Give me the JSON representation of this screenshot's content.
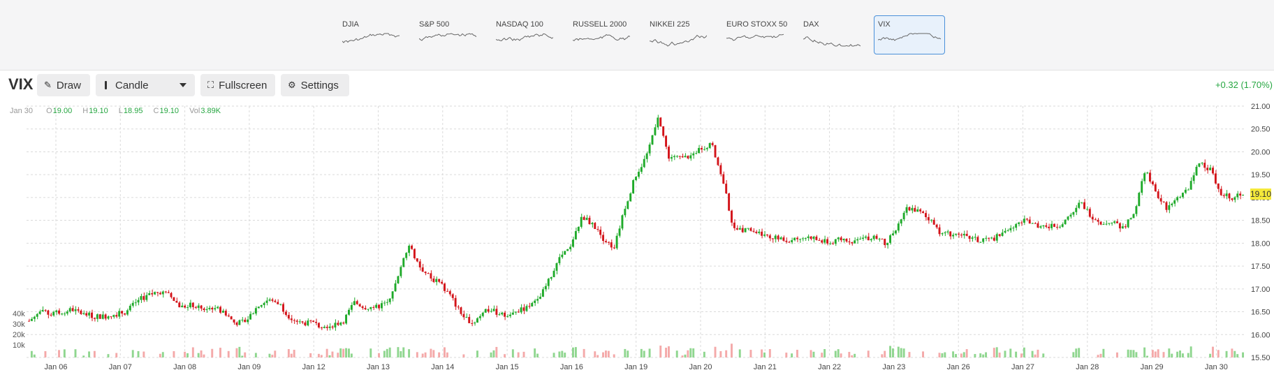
{
  "indices": [
    {
      "label": "DJIA",
      "active": false
    },
    {
      "label": "S&P 500",
      "active": false
    },
    {
      "label": "NASDAQ 100",
      "active": false
    },
    {
      "label": "RUSSELL 2000",
      "active": false
    },
    {
      "label": "NIKKEI 225",
      "active": false
    },
    {
      "label": "EURO STOXX 50",
      "active": false
    },
    {
      "label": "DAX",
      "active": false
    },
    {
      "label": "VIX",
      "active": true
    }
  ],
  "toolbar": {
    "symbol": "VIX",
    "draw_label": "Draw",
    "chart_type_label": "Candle",
    "fullscreen_label": "Fullscreen",
    "settings_label": "Settings",
    "change": "+0.32 (1.70%)"
  },
  "ohlc": {
    "date": "Jan 30",
    "open_key": "O",
    "open": "19.00",
    "high_key": "H",
    "high": "19.10",
    "low_key": "L",
    "low": "18.95",
    "close_key": "C",
    "close": "19.10",
    "vol_key": "Vol",
    "vol": "3.89K"
  },
  "last_price": "19.10",
  "colors": {
    "up": "#1faa2a",
    "down": "#d3141a",
    "vol_up": "#8fd68f",
    "vol_down": "#f4a9a9",
    "accent": "#4a90d9"
  },
  "chart_data": {
    "type": "candlestick",
    "ylim": [
      15.5,
      21.0
    ],
    "y_ticks": [
      "21.00",
      "20.50",
      "20.00",
      "19.50",
      "19.00",
      "18.50",
      "18.00",
      "17.50",
      "17.00",
      "16.50",
      "16.00",
      "15.50"
    ],
    "volume_ticks": [
      "40k",
      "30k",
      "20k",
      "10k"
    ],
    "x_ticks": [
      "Jan 06",
      "Jan 07",
      "Jan 08",
      "Jan 09",
      "Jan 12",
      "Jan 13",
      "Jan 14",
      "Jan 15",
      "Jan 16",
      "Jan 19",
      "Jan 20",
      "Jan 21",
      "Jan 22",
      "Jan 23",
      "Jan 26",
      "Jan 27",
      "Jan 28",
      "Jan 29",
      "Jan 30"
    ],
    "close_path": [
      [
        0,
        16.3
      ],
      [
        1,
        16.5
      ],
      [
        2,
        16.45
      ],
      [
        3,
        16.5
      ],
      [
        4,
        16.55
      ],
      [
        5,
        16.45
      ],
      [
        6,
        16.4
      ],
      [
        7,
        16.4
      ],
      [
        8,
        16.45
      ],
      [
        9,
        16.5
      ],
      [
        10,
        16.75
      ],
      [
        11,
        16.85
      ],
      [
        12,
        16.95
      ],
      [
        13,
        16.85
      ],
      [
        14,
        16.6
      ],
      [
        15,
        16.65
      ],
      [
        16,
        16.55
      ],
      [
        17,
        16.6
      ],
      [
        18,
        16.5
      ],
      [
        19,
        16.25
      ],
      [
        20,
        16.3
      ],
      [
        21,
        16.6
      ],
      [
        22,
        16.75
      ],
      [
        23,
        16.7
      ],
      [
        24,
        16.4
      ],
      [
        25,
        16.25
      ],
      [
        26,
        16.25
      ],
      [
        27,
        16.2
      ],
      [
        28,
        16.2
      ],
      [
        29,
        16.3
      ],
      [
        30,
        16.7
      ],
      [
        31,
        16.6
      ],
      [
        32,
        16.6
      ],
      [
        33,
        16.7
      ],
      [
        34,
        17.2
      ],
      [
        35,
        18.0
      ],
      [
        36,
        17.5
      ],
      [
        37,
        17.25
      ],
      [
        38,
        17.1
      ],
      [
        39,
        16.8
      ],
      [
        40,
        16.4
      ],
      [
        41,
        16.25
      ],
      [
        42,
        16.55
      ],
      [
        43,
        16.5
      ],
      [
        44,
        16.4
      ],
      [
        45,
        16.5
      ],
      [
        46,
        16.6
      ],
      [
        47,
        16.75
      ],
      [
        48,
        17.2
      ],
      [
        49,
        17.7
      ],
      [
        50,
        17.9
      ],
      [
        51,
        18.6
      ],
      [
        52,
        18.4
      ],
      [
        53,
        18.1
      ],
      [
        54,
        17.9
      ],
      [
        55,
        18.8
      ],
      [
        56,
        19.5
      ],
      [
        57,
        19.9
      ],
      [
        58,
        20.8
      ],
      [
        59,
        19.9
      ],
      [
        60,
        19.85
      ],
      [
        61,
        19.9
      ],
      [
        62,
        20.1
      ],
      [
        63,
        20.15
      ],
      [
        64,
        19.4
      ],
      [
        65,
        18.3
      ],
      [
        66,
        18.3
      ],
      [
        67,
        18.25
      ],
      [
        68,
        18.2
      ],
      [
        69,
        18.1
      ],
      [
        70,
        18.05
      ],
      [
        71,
        18.1
      ],
      [
        72,
        18.15
      ],
      [
        73,
        18.05
      ],
      [
        74,
        18.0
      ],
      [
        75,
        18.1
      ],
      [
        76,
        18.05
      ],
      [
        77,
        18.1
      ],
      [
        78,
        18.15
      ],
      [
        79,
        18.0
      ],
      [
        80,
        18.3
      ],
      [
        81,
        18.8
      ],
      [
        82,
        18.7
      ],
      [
        83,
        18.55
      ],
      [
        84,
        18.25
      ],
      [
        85,
        18.2
      ],
      [
        86,
        18.2
      ],
      [
        87,
        18.1
      ],
      [
        88,
        18.05
      ],
      [
        89,
        18.1
      ],
      [
        90,
        18.3
      ],
      [
        91,
        18.4
      ],
      [
        92,
        18.5
      ],
      [
        93,
        18.4
      ],
      [
        94,
        18.35
      ],
      [
        95,
        18.4
      ],
      [
        96,
        18.55
      ],
      [
        97,
        18.9
      ],
      [
        98,
        18.6
      ],
      [
        99,
        18.45
      ],
      [
        100,
        18.45
      ],
      [
        101,
        18.3
      ],
      [
        102,
        18.7
      ],
      [
        103,
        19.6
      ],
      [
        104,
        19.1
      ],
      [
        105,
        18.75
      ],
      [
        106,
        19.0
      ],
      [
        107,
        19.2
      ],
      [
        108,
        19.8
      ],
      [
        109,
        19.6
      ],
      [
        110,
        19.1
      ],
      [
        111,
        19.0
      ],
      [
        112,
        19.1
      ]
    ]
  }
}
